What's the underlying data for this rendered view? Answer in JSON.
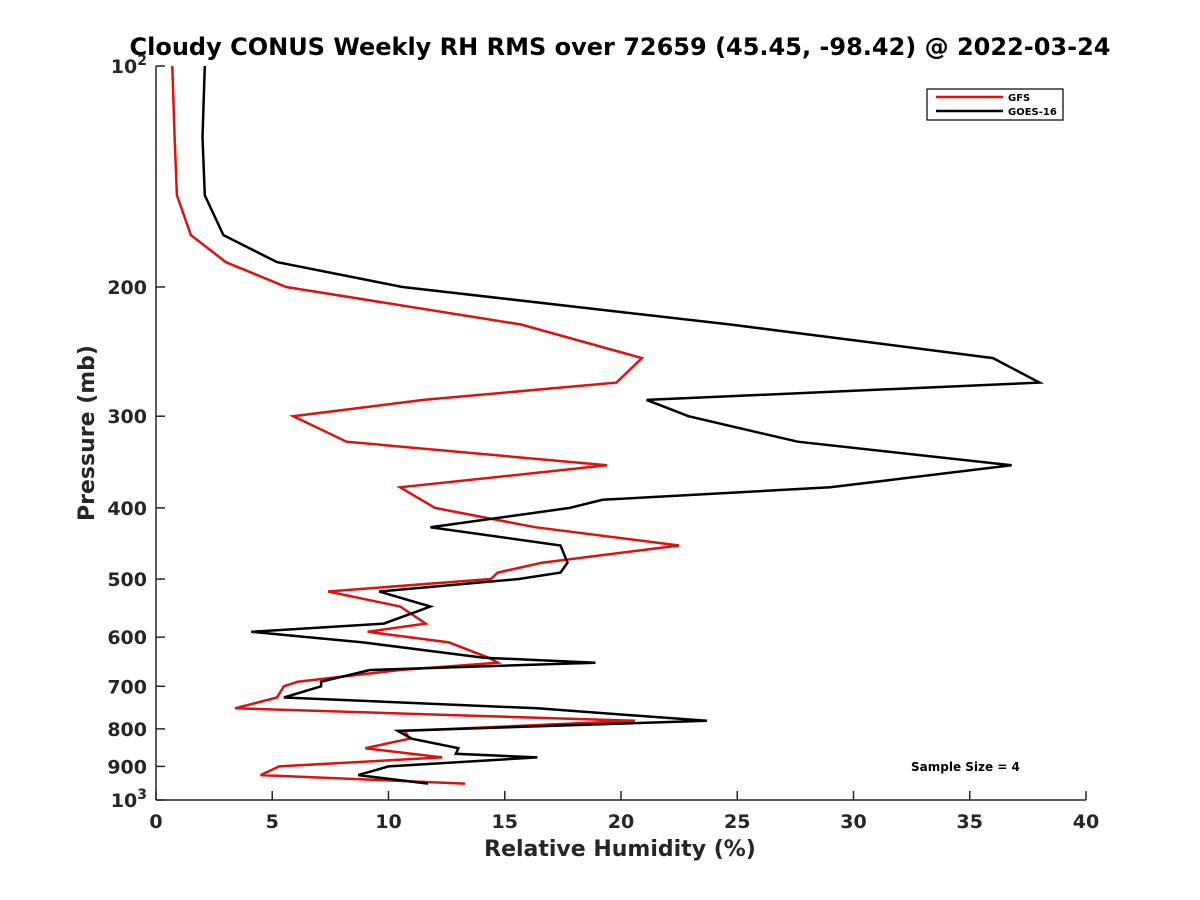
{
  "chart_data": {
    "type": "line",
    "title": "Cloudy CONUS Weekly RH RMS over 72659 (45.45, -98.42) @ 2022-03-24",
    "xlabel": "Relative Humidity (%)",
    "ylabel": "Pressure (mb)",
    "xlim": [
      0,
      40
    ],
    "ylim": [
      100,
      1000
    ],
    "y_scale": "log",
    "y_reversed": true,
    "grid": false,
    "legend_position": "top-right",
    "x_ticks": [
      "0",
      "5",
      "10",
      "15",
      "20",
      "25",
      "30",
      "35",
      "40"
    ],
    "y_ticks": [
      {
        "value": 100,
        "base": "10",
        "exp": "2"
      },
      {
        "value": 200,
        "label": "200"
      },
      {
        "value": 300,
        "label": "300"
      },
      {
        "value": 400,
        "label": "400"
      },
      {
        "value": 500,
        "label": "500"
      },
      {
        "value": 600,
        "label": "600"
      },
      {
        "value": 700,
        "label": "700"
      },
      {
        "value": 800,
        "label": "800"
      },
      {
        "value": 900,
        "label": "900"
      },
      {
        "value": 1000,
        "base": "10",
        "exp": "3"
      }
    ],
    "series": [
      {
        "name": "GFS",
        "color": "#dd1111",
        "points": [
          [
            0.7,
            100
          ],
          [
            0.8,
            125
          ],
          [
            0.9,
            150
          ],
          [
            1.5,
            170
          ],
          [
            3.0,
            185
          ],
          [
            5.6,
            200
          ],
          [
            15.7,
            225
          ],
          [
            20.9,
            250
          ],
          [
            19.8,
            270
          ],
          [
            11.5,
            285
          ],
          [
            5.9,
            300
          ],
          [
            8.2,
            325
          ],
          [
            19.4,
            350
          ],
          [
            10.5,
            375
          ],
          [
            12.0,
            400
          ],
          [
            16.3,
            425
          ],
          [
            22.5,
            450
          ],
          [
            16.6,
            475
          ],
          [
            14.7,
            490
          ],
          [
            14.4,
            500
          ],
          [
            7.4,
            520
          ],
          [
            10.5,
            545
          ],
          [
            11.6,
            575
          ],
          [
            9.1,
            590
          ],
          [
            12.6,
            610
          ],
          [
            14.3,
            640
          ],
          [
            14.7,
            650
          ],
          [
            10.5,
            665
          ],
          [
            6.1,
            690
          ],
          [
            5.5,
            700
          ],
          [
            5.2,
            725
          ],
          [
            3.4,
            750
          ],
          [
            20.6,
            780
          ],
          [
            10.7,
            805
          ],
          [
            10.9,
            825
          ],
          [
            9.0,
            850
          ],
          [
            12.3,
            875
          ],
          [
            5.3,
            900
          ],
          [
            4.5,
            925
          ],
          [
            13.3,
            950
          ]
        ]
      },
      {
        "name": "GOES-16",
        "color": "#000000",
        "points": [
          [
            2.1,
            100
          ],
          [
            2.0,
            125
          ],
          [
            2.1,
            150
          ],
          [
            2.9,
            170
          ],
          [
            5.2,
            185
          ],
          [
            10.6,
            200
          ],
          [
            24.7,
            225
          ],
          [
            36.0,
            250
          ],
          [
            38.0,
            270
          ],
          [
            21.1,
            285
          ],
          [
            22.9,
            300
          ],
          [
            27.6,
            325
          ],
          [
            36.8,
            350
          ],
          [
            29.0,
            375
          ],
          [
            19.2,
            390
          ],
          [
            17.8,
            400
          ],
          [
            11.8,
            425
          ],
          [
            17.4,
            450
          ],
          [
            17.7,
            475
          ],
          [
            17.4,
            490
          ],
          [
            15.6,
            500
          ],
          [
            9.6,
            520
          ],
          [
            11.8,
            545
          ],
          [
            9.8,
            575
          ],
          [
            4.1,
            590
          ],
          [
            8.9,
            610
          ],
          [
            14.1,
            640
          ],
          [
            18.9,
            650
          ],
          [
            9.2,
            665
          ],
          [
            7.1,
            690
          ],
          [
            7.1,
            700
          ],
          [
            5.5,
            725
          ],
          [
            16.4,
            750
          ],
          [
            23.7,
            780
          ],
          [
            10.4,
            805
          ],
          [
            11.0,
            825
          ],
          [
            13.0,
            850
          ],
          [
            12.9,
            865
          ],
          [
            16.4,
            875
          ],
          [
            10.0,
            900
          ],
          [
            8.7,
            925
          ],
          [
            11.7,
            950
          ]
        ]
      }
    ],
    "annotation": "Sample Size = 4"
  }
}
